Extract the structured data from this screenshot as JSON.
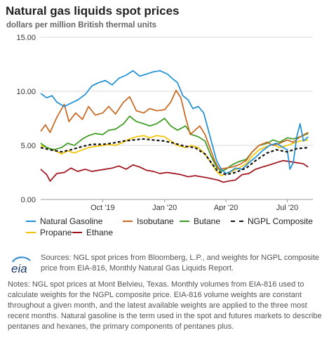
{
  "header": {
    "title": "Natural gas liquids spot prices",
    "subtitle": "dollars per million British thermal units"
  },
  "chart_data": {
    "type": "line",
    "ylim": [
      0,
      15
    ],
    "yticks": [
      "0.00",
      "5.00",
      "10.00",
      "15.00"
    ],
    "xlim": [
      "2019-07-01",
      "2020-08-08"
    ],
    "xticks": [
      {
        "label": "Oct '19",
        "date": "2019-10-01"
      },
      {
        "label": "Jan '20",
        "date": "2020-01-01"
      },
      {
        "label": "Apr '20",
        "date": "2020-04-01"
      },
      {
        "label": "Jul '20",
        "date": "2020-07-01"
      }
    ],
    "grid": "horizontal",
    "legend_position": "bottom",
    "series": [
      {
        "name": "Ethane",
        "color": "#a0101a",
        "dashed": false,
        "points": [
          [
            "2019-07-01",
            2.8
          ],
          [
            "2019-07-10",
            2.3
          ],
          [
            "2019-07-15",
            1.7
          ],
          [
            "2019-07-25",
            2.4
          ],
          [
            "2019-08-05",
            2.5
          ],
          [
            "2019-08-15",
            2.9
          ],
          [
            "2019-08-25",
            2.6
          ],
          [
            "2019-09-05",
            2.8
          ],
          [
            "2019-09-15",
            2.6
          ],
          [
            "2019-09-25",
            2.7
          ],
          [
            "2019-10-05",
            2.8
          ],
          [
            "2019-10-15",
            2.9
          ],
          [
            "2019-10-25",
            3.1
          ],
          [
            "2019-11-05",
            2.8
          ],
          [
            "2019-11-15",
            3.2
          ],
          [
            "2019-11-25",
            3.0
          ],
          [
            "2019-12-05",
            2.7
          ],
          [
            "2019-12-15",
            2.6
          ],
          [
            "2019-12-25",
            2.4
          ],
          [
            "2020-01-05",
            2.5
          ],
          [
            "2020-01-15",
            2.4
          ],
          [
            "2020-01-25",
            2.3
          ],
          [
            "2020-02-05",
            2.1
          ],
          [
            "2020-02-15",
            2.2
          ],
          [
            "2020-02-25",
            2.1
          ],
          [
            "2020-03-05",
            2.0
          ],
          [
            "2020-03-12",
            1.9
          ],
          [
            "2020-03-20",
            1.8
          ],
          [
            "2020-03-28",
            1.6
          ],
          [
            "2020-04-05",
            1.7
          ],
          [
            "2020-04-15",
            1.8
          ],
          [
            "2020-04-25",
            2.3
          ],
          [
            "2020-05-05",
            2.4
          ],
          [
            "2020-05-15",
            2.8
          ],
          [
            "2020-05-25",
            3.0
          ],
          [
            "2020-06-05",
            3.2
          ],
          [
            "2020-06-15",
            3.4
          ],
          [
            "2020-06-25",
            3.6
          ],
          [
            "2020-07-05",
            3.5
          ],
          [
            "2020-07-15",
            3.4
          ],
          [
            "2020-07-25",
            3.3
          ],
          [
            "2020-08-01",
            3.0
          ]
        ]
      },
      {
        "name": "Propane",
        "color": "#f2c500",
        "dashed": false,
        "points": [
          [
            "2019-07-01",
            5.0
          ],
          [
            "2019-07-10",
            4.8
          ],
          [
            "2019-07-20",
            4.6
          ],
          [
            "2019-08-01",
            4.2
          ],
          [
            "2019-08-10",
            4.5
          ],
          [
            "2019-08-20",
            4.3
          ],
          [
            "2019-09-01",
            4.6
          ],
          [
            "2019-09-10",
            4.8
          ],
          [
            "2019-09-20",
            4.9
          ],
          [
            "2019-10-01",
            5.0
          ],
          [
            "2019-10-10",
            5.1
          ],
          [
            "2019-10-20",
            5.0
          ],
          [
            "2019-11-01",
            5.3
          ],
          [
            "2019-11-10",
            5.6
          ],
          [
            "2019-11-20",
            5.8
          ],
          [
            "2019-12-01",
            5.9
          ],
          [
            "2019-12-10",
            5.7
          ],
          [
            "2019-12-20",
            5.9
          ],
          [
            "2020-01-01",
            5.8
          ],
          [
            "2020-01-10",
            5.4
          ],
          [
            "2020-01-20",
            5.0
          ],
          [
            "2020-02-01",
            4.8
          ],
          [
            "2020-02-10",
            5.0
          ],
          [
            "2020-02-20",
            4.8
          ],
          [
            "2020-03-01",
            4.2
          ],
          [
            "2020-03-10",
            3.4
          ],
          [
            "2020-03-18",
            2.6
          ],
          [
            "2020-03-25",
            2.2
          ],
          [
            "2020-04-01",
            2.4
          ],
          [
            "2020-04-10",
            2.6
          ],
          [
            "2020-04-20",
            2.9
          ],
          [
            "2020-05-01",
            3.3
          ],
          [
            "2020-05-10",
            4.0
          ],
          [
            "2020-05-20",
            4.6
          ],
          [
            "2020-06-01",
            4.9
          ],
          [
            "2020-06-10",
            5.1
          ],
          [
            "2020-06-20",
            4.8
          ],
          [
            "2020-07-01",
            5.0
          ],
          [
            "2020-07-10",
            5.2
          ],
          [
            "2020-07-20",
            5.4
          ],
          [
            "2020-08-01",
            5.5
          ]
        ]
      },
      {
        "name": "Butane",
        "color": "#3a9a1e",
        "dashed": false,
        "points": [
          [
            "2019-07-01",
            5.2
          ],
          [
            "2019-07-10",
            4.8
          ],
          [
            "2019-07-20",
            4.6
          ],
          [
            "2019-08-01",
            4.8
          ],
          [
            "2019-08-10",
            5.2
          ],
          [
            "2019-08-20",
            5.0
          ],
          [
            "2019-09-01",
            5.6
          ],
          [
            "2019-09-10",
            5.9
          ],
          [
            "2019-09-20",
            6.1
          ],
          [
            "2019-10-01",
            6.0
          ],
          [
            "2019-10-10",
            6.4
          ],
          [
            "2019-10-20",
            6.5
          ],
          [
            "2019-11-01",
            7.0
          ],
          [
            "2019-11-10",
            7.7
          ],
          [
            "2019-11-20",
            7.2
          ],
          [
            "2019-12-01",
            7.0
          ],
          [
            "2019-12-10",
            6.8
          ],
          [
            "2019-12-20",
            7.0
          ],
          [
            "2020-01-01",
            7.5
          ],
          [
            "2020-01-10",
            6.8
          ],
          [
            "2020-01-20",
            6.4
          ],
          [
            "2020-02-01",
            6.8
          ],
          [
            "2020-02-10",
            6.0
          ],
          [
            "2020-02-20",
            5.8
          ],
          [
            "2020-03-01",
            5.4
          ],
          [
            "2020-03-10",
            4.0
          ],
          [
            "2020-03-18",
            3.0
          ],
          [
            "2020-03-25",
            2.6
          ],
          [
            "2020-04-01",
            2.8
          ],
          [
            "2020-04-10",
            3.2
          ],
          [
            "2020-04-20",
            3.5
          ],
          [
            "2020-05-01",
            3.7
          ],
          [
            "2020-05-10",
            4.4
          ],
          [
            "2020-05-20",
            5.0
          ],
          [
            "2020-06-01",
            5.2
          ],
          [
            "2020-06-10",
            5.5
          ],
          [
            "2020-06-20",
            5.3
          ],
          [
            "2020-07-01",
            5.7
          ],
          [
            "2020-07-10",
            5.6
          ],
          [
            "2020-07-20",
            5.8
          ],
          [
            "2020-08-01",
            6.1
          ]
        ]
      },
      {
        "name": "Isobutane",
        "color": "#c8661e",
        "dashed": false,
        "points": [
          [
            "2019-07-01",
            6.3
          ],
          [
            "2019-07-08",
            6.9
          ],
          [
            "2019-07-15",
            6.2
          ],
          [
            "2019-07-25",
            7.6
          ],
          [
            "2019-08-05",
            8.8
          ],
          [
            "2019-08-12",
            7.2
          ],
          [
            "2019-08-22",
            8.0
          ],
          [
            "2019-09-01",
            7.4
          ],
          [
            "2019-09-10",
            8.6
          ],
          [
            "2019-09-20",
            7.8
          ],
          [
            "2019-10-01",
            8.0
          ],
          [
            "2019-10-10",
            8.6
          ],
          [
            "2019-10-20",
            7.9
          ],
          [
            "2019-11-01",
            9.0
          ],
          [
            "2019-11-10",
            9.5
          ],
          [
            "2019-11-20",
            8.2
          ],
          [
            "2019-12-01",
            8.0
          ],
          [
            "2019-12-10",
            8.4
          ],
          [
            "2019-12-20",
            8.2
          ],
          [
            "2020-01-01",
            8.3
          ],
          [
            "2020-01-10",
            9.0
          ],
          [
            "2020-01-18",
            10.1
          ],
          [
            "2020-01-25",
            9.4
          ],
          [
            "2020-02-01",
            7.6
          ],
          [
            "2020-02-08",
            6.0
          ],
          [
            "2020-02-15",
            6.4
          ],
          [
            "2020-02-22",
            6.8
          ],
          [
            "2020-03-01",
            6.0
          ],
          [
            "2020-03-08",
            4.8
          ],
          [
            "2020-03-15",
            3.6
          ],
          [
            "2020-03-22",
            2.8
          ],
          [
            "2020-04-01",
            2.9
          ],
          [
            "2020-04-10",
            3.0
          ],
          [
            "2020-04-20",
            3.2
          ],
          [
            "2020-05-01",
            3.6
          ],
          [
            "2020-05-10",
            4.4
          ],
          [
            "2020-05-20",
            5.0
          ],
          [
            "2020-06-01",
            5.3
          ],
          [
            "2020-06-10",
            5.0
          ],
          [
            "2020-06-20",
            5.2
          ],
          [
            "2020-07-01",
            5.5
          ],
          [
            "2020-07-10",
            5.3
          ],
          [
            "2020-07-20",
            5.8
          ],
          [
            "2020-08-01",
            6.2
          ]
        ]
      },
      {
        "name": "Natural Gasoline",
        "color": "#1e8fd6",
        "dashed": false,
        "points": [
          [
            "2019-07-01",
            9.8
          ],
          [
            "2019-07-10",
            9.4
          ],
          [
            "2019-07-18",
            9.6
          ],
          [
            "2019-07-25",
            9.0
          ],
          [
            "2019-08-05",
            8.6
          ],
          [
            "2019-08-15",
            8.9
          ],
          [
            "2019-08-25",
            9.2
          ],
          [
            "2019-09-05",
            9.7
          ],
          [
            "2019-09-15",
            10.5
          ],
          [
            "2019-09-25",
            10.8
          ],
          [
            "2019-10-05",
            11.0
          ],
          [
            "2019-10-15",
            10.6
          ],
          [
            "2019-10-25",
            11.2
          ],
          [
            "2019-11-05",
            11.5
          ],
          [
            "2019-11-15",
            11.9
          ],
          [
            "2019-11-25",
            11.4
          ],
          [
            "2019-12-05",
            11.6
          ],
          [
            "2019-12-15",
            11.8
          ],
          [
            "2019-12-25",
            11.9
          ],
          [
            "2020-01-05",
            11.6
          ],
          [
            "2020-01-12",
            11.2
          ],
          [
            "2020-01-20",
            10.8
          ],
          [
            "2020-01-28",
            9.6
          ],
          [
            "2020-02-05",
            9.2
          ],
          [
            "2020-02-12",
            8.4
          ],
          [
            "2020-02-20",
            8.6
          ],
          [
            "2020-02-28",
            8.0
          ],
          [
            "2020-03-05",
            6.6
          ],
          [
            "2020-03-12",
            5.0
          ],
          [
            "2020-03-18",
            3.6
          ],
          [
            "2020-03-25",
            2.8
          ],
          [
            "2020-04-01",
            2.4
          ],
          [
            "2020-04-08",
            2.6
          ],
          [
            "2020-04-15",
            2.9
          ],
          [
            "2020-04-25",
            2.8
          ],
          [
            "2020-05-05",
            3.4
          ],
          [
            "2020-05-15",
            3.9
          ],
          [
            "2020-05-25",
            4.5
          ],
          [
            "2020-06-05",
            5.0
          ],
          [
            "2020-06-15",
            5.2
          ],
          [
            "2020-06-25",
            4.8
          ],
          [
            "2020-07-01",
            4.6
          ],
          [
            "2020-07-05",
            2.8
          ],
          [
            "2020-07-10",
            3.4
          ],
          [
            "2020-07-15",
            5.8
          ],
          [
            "2020-07-20",
            7.0
          ],
          [
            "2020-07-25",
            5.4
          ],
          [
            "2020-08-01",
            5.8
          ]
        ]
      },
      {
        "name": "NGPL Composite",
        "color": "#111111",
        "dashed": true,
        "points": [
          [
            "2019-07-01",
            4.8
          ],
          [
            "2019-07-15",
            4.6
          ],
          [
            "2019-08-01",
            4.4
          ],
          [
            "2019-08-15",
            4.6
          ],
          [
            "2019-09-01",
            4.9
          ],
          [
            "2019-09-15",
            5.1
          ],
          [
            "2019-10-01",
            5.1
          ],
          [
            "2019-10-15",
            5.2
          ],
          [
            "2019-11-01",
            5.4
          ],
          [
            "2019-11-15",
            5.5
          ],
          [
            "2019-12-01",
            5.6
          ],
          [
            "2019-12-15",
            5.5
          ],
          [
            "2020-01-01",
            5.4
          ],
          [
            "2020-01-15",
            5.2
          ],
          [
            "2020-02-01",
            4.9
          ],
          [
            "2020-02-15",
            4.8
          ],
          [
            "2020-03-01",
            4.2
          ],
          [
            "2020-03-10",
            3.4
          ],
          [
            "2020-03-20",
            2.6
          ],
          [
            "2020-04-01",
            2.3
          ],
          [
            "2020-04-15",
            2.5
          ],
          [
            "2020-05-01",
            2.9
          ],
          [
            "2020-05-15",
            3.6
          ],
          [
            "2020-06-01",
            4.3
          ],
          [
            "2020-06-15",
            4.6
          ],
          [
            "2020-07-01",
            4.4
          ],
          [
            "2020-07-15",
            4.7
          ],
          [
            "2020-08-01",
            4.8
          ]
        ]
      }
    ]
  },
  "legend": {
    "items": [
      {
        "label": "Natural Gasoline",
        "color": "#1e8fd6",
        "dashed": false
      },
      {
        "label": "Isobutane",
        "color": "#c8661e",
        "dashed": false
      },
      {
        "label": "Butane",
        "color": "#3a9a1e",
        "dashed": false
      },
      {
        "label": "NGPL Composite",
        "color": "#111111",
        "dashed": true
      },
      {
        "label": "Propane",
        "color": "#f2c500",
        "dashed": false
      },
      {
        "label": "Ethane",
        "color": "#a0101a",
        "dashed": false
      }
    ]
  },
  "footer": {
    "logo_text": "eia",
    "sources": "Sources: NGL spot prices from Bloomberg, L.P., and weights for NGPL composite price from EIA-816, Monthly Natural Gas Liquids Report.",
    "notes": "Notes: NGL spot prices at Mont Belvieu, Texas. Monthly volumes from EIA-816 used to calculate weights for the NGPL composite price. EIA-816 volume weights are constant throughout a given month, and the latest available weights are applied to the three most recent months. Natural gasoline is the term used in the spot and futures markets to describe pentanes and hexanes, the primary components of pentanes plus."
  }
}
